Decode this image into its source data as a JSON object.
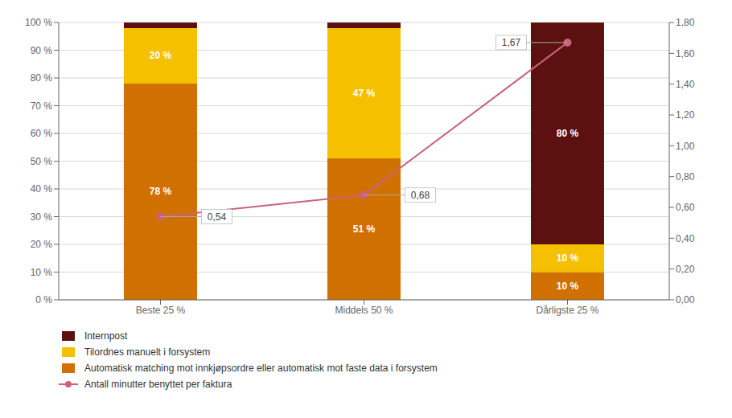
{
  "chart_data": {
    "type": "bar",
    "stacked": true,
    "grid": true,
    "legend": "bottom",
    "data_labels": true,
    "categories": [
      "Beste 25 %",
      "Middels 50 %",
      "Dårligste 25 %"
    ],
    "series": [
      {
        "name": "Automatisk matching mot innkjøpsordre eller automatisk mot faste data i forsystem",
        "color": "#D07000",
        "values": [
          78,
          51,
          10
        ],
        "value_labels": [
          "78 %",
          "51 %",
          "10 %"
        ]
      },
      {
        "name": "Tilordnes manuelt i forsystem",
        "color": "#F5C000",
        "values": [
          20,
          47,
          10
        ],
        "value_labels": [
          "20 %",
          "47 %",
          "10 %"
        ]
      },
      {
        "name": "Internpost",
        "color": "#5C1010",
        "values": [
          2,
          2,
          80
        ],
        "value_labels": [
          null,
          null,
          "80 %"
        ]
      },
      {
        "name": "Antall minutter benyttet per faktura",
        "type": "line",
        "axis": "y2",
        "color": "#C9637A",
        "marker": "o",
        "values": [
          0.54,
          0.68,
          1.67
        ],
        "value_labels": [
          "0,54",
          "0,68",
          "1,67"
        ]
      }
    ],
    "ylim": [
      0,
      100
    ],
    "yticks": [
      {
        "value": 0,
        "label": "0 %"
      },
      {
        "value": 10,
        "label": "10 %"
      },
      {
        "value": 20,
        "label": "20 %"
      },
      {
        "value": 30,
        "label": "30 %"
      },
      {
        "value": 40,
        "label": "40 %"
      },
      {
        "value": 50,
        "label": "50 %"
      },
      {
        "value": 60,
        "label": "60 %"
      },
      {
        "value": 70,
        "label": "70 %"
      },
      {
        "value": 80,
        "label": "80 %"
      },
      {
        "value": 90,
        "label": "90 %"
      },
      {
        "value": 100,
        "label": "100 %"
      }
    ],
    "y2lim": [
      0,
      1.8
    ],
    "y2ticks": [
      {
        "value": 0,
        "label": "0,00"
      },
      {
        "value": 0.2,
        "label": "0,20"
      },
      {
        "value": 0.4,
        "label": "0,40"
      },
      {
        "value": 0.6,
        "label": "0,60"
      },
      {
        "value": 0.8,
        "label": "0,80"
      },
      {
        "value": 1.0,
        "label": "1,00"
      },
      {
        "value": 1.2,
        "label": "1,20"
      },
      {
        "value": 1.4,
        "label": "1,40"
      },
      {
        "value": 1.6,
        "label": "1,60"
      },
      {
        "value": 1.8,
        "label": "1,80"
      }
    ]
  }
}
